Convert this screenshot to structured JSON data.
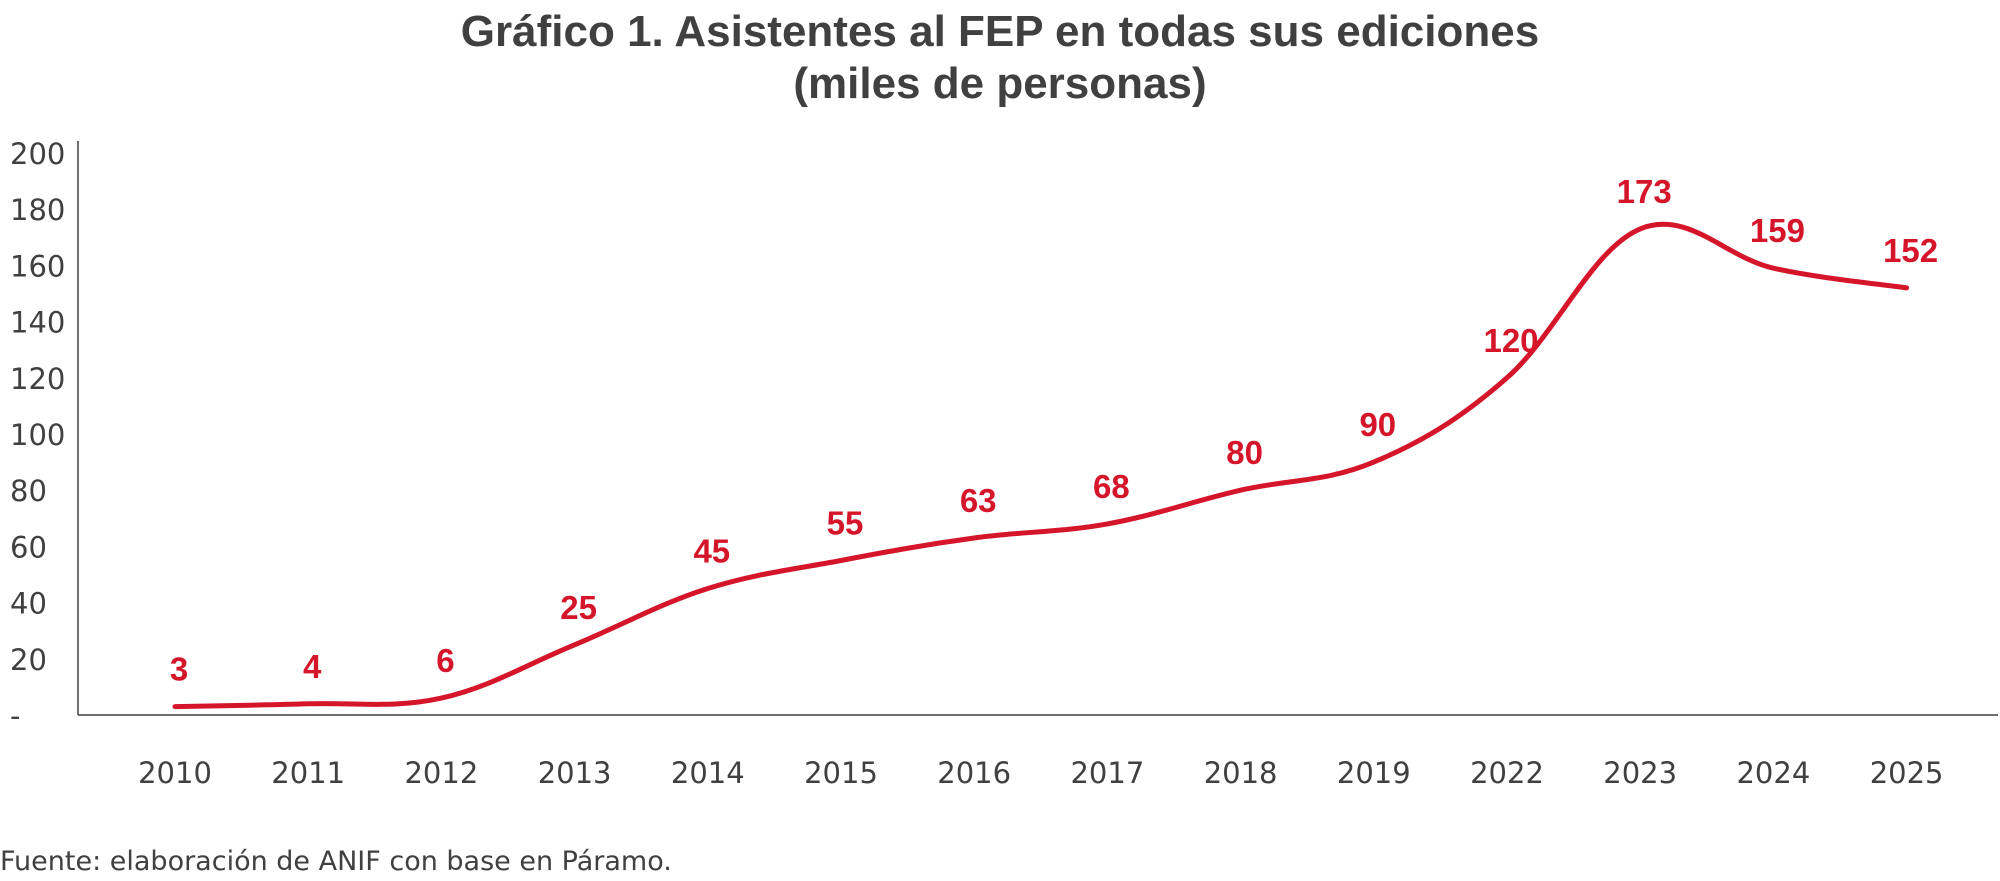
{
  "chart_data": {
    "type": "line",
    "title_line1": "Gráfico 1. Asistentes al FEP en todas sus ediciones",
    "title_line2": "(miles de personas)",
    "xlabel": "",
    "ylabel": "",
    "categories": [
      "2010",
      "2011",
      "2012",
      "2013",
      "2014",
      "2015",
      "2016",
      "2017",
      "2018",
      "2019",
      "2022",
      "2023",
      "2024",
      "2025"
    ],
    "series": [
      {
        "values": [
          3,
          4,
          6,
          25,
          45,
          55,
          63,
          68,
          80,
          90,
          120,
          173,
          159,
          152
        ]
      }
    ],
    "ylim": [
      0,
      200
    ],
    "yticks": [
      0,
      20,
      40,
      60,
      80,
      100,
      120,
      140,
      160,
      180,
      200
    ],
    "ytick_labels": [
      "-",
      "20",
      "40",
      "60",
      "80",
      "100",
      "120",
      "140",
      "160",
      "180",
      "200"
    ],
    "grid": false,
    "legend": "none",
    "line_color": "#d5152a",
    "text_color": "#404040",
    "axis_color": "#404040"
  },
  "source": "Fuente: elaboración de ANIF con base en Páramo."
}
